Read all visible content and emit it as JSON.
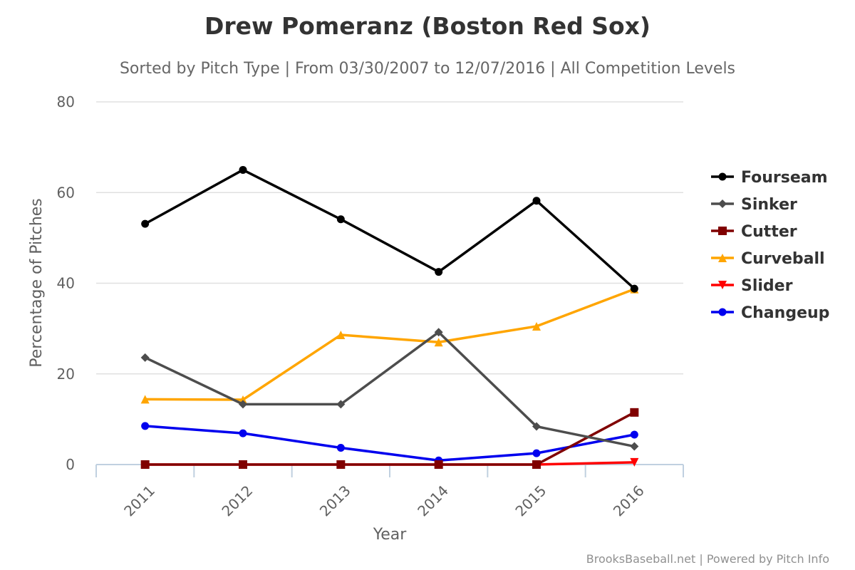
{
  "chart_data": {
    "type": "line",
    "title": "Drew Pomeranz (Boston Red Sox)",
    "subtitle": "Sorted by Pitch Type | From 03/30/2007 to 12/07/2016 | All Competition Levels",
    "xlabel": "Year",
    "ylabel": "Percentage of Pitches",
    "categories": [
      "2011",
      "2012",
      "2013",
      "2014",
      "2015",
      "2016"
    ],
    "ylim": [
      0,
      80
    ],
    "yticks": [
      0,
      20,
      40,
      60,
      80
    ],
    "grid": true,
    "legend_position": "right",
    "series": [
      {
        "name": "Fourseam",
        "color": "#000000",
        "marker": "circle",
        "values": [
          53.1,
          65.0,
          54.1,
          42.5,
          58.2,
          38.8
        ]
      },
      {
        "name": "Sinker",
        "color": "#4d4d4d",
        "marker": "diamond",
        "values": [
          23.6,
          13.3,
          13.3,
          29.2,
          8.4,
          4.0
        ]
      },
      {
        "name": "Cutter",
        "color": "#800000",
        "marker": "square",
        "values": [
          0.0,
          0.0,
          0.0,
          0.0,
          0.0,
          11.5
        ]
      },
      {
        "name": "Curveball",
        "color": "#ffa500",
        "marker": "triangle",
        "values": [
          14.4,
          14.3,
          28.6,
          27.0,
          30.5,
          38.7
        ]
      },
      {
        "name": "Slider",
        "color": "#ff0000",
        "marker": "triangle-down",
        "values": [
          0.0,
          0.0,
          0.0,
          0.0,
          0.0,
          0.5
        ]
      },
      {
        "name": "Changeup",
        "color": "#0000ee",
        "marker": "circle",
        "values": [
          8.5,
          6.9,
          3.7,
          0.9,
          2.5,
          6.6
        ]
      }
    ],
    "credits": "BrooksBaseball.net | Powered by Pitch Info"
  }
}
